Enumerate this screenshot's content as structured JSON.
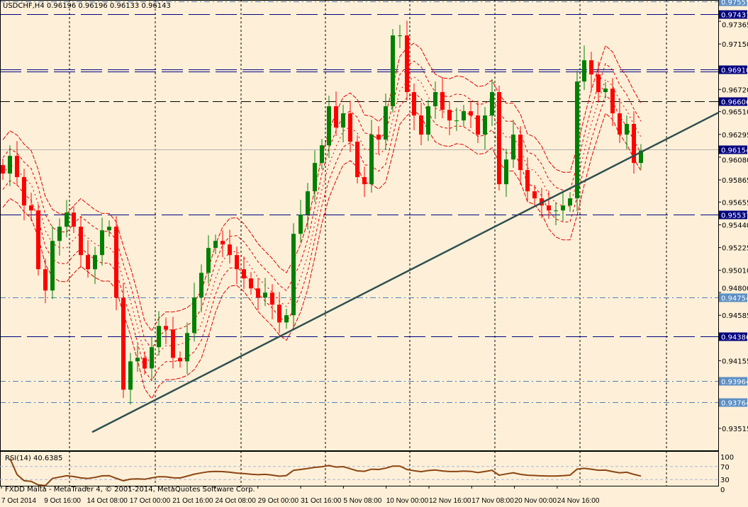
{
  "header": {
    "symbol_line": "USDCHF,H4  0.96196 0.96196 0.96133 0.96143"
  },
  "indicator": {
    "label": "RSI(14) 40.6385"
  },
  "footer": {
    "copyright": "FXDD Malta - MetaTrader 4, © 2001-2014, MetaQuotes Software Corp."
  },
  "colors": {
    "background": "#FEF0D8",
    "bull": "#008000",
    "bear": "#FF0000",
    "level_navy": "#000080",
    "level_steel": "#4F81BD",
    "envelope": "#E00000",
    "trendline": "#2F4F4F",
    "rsi": "#8B4513"
  },
  "chart_data": {
    "type": "candlestick",
    "symbol": "USDCHF",
    "timeframe": "H4",
    "closes": [
      0.95925,
      0.96092,
      0.95891,
      0.95623,
      0.95576,
      0.9502,
      0.94819,
      0.95288,
      0.95422,
      0.95556,
      0.95422,
      0.95154,
      0.9502,
      0.95154,
      0.95388,
      0.95422,
      0.94752,
      0.93881,
      0.94149,
      0.94182,
      0.94082,
      0.94283,
      0.94484,
      0.9445,
      0.94182,
      0.94149,
      0.94417,
      0.94752,
      0.94986,
      0.95221,
      0.95288,
      0.95254,
      0.95154,
      0.9502,
      0.94933,
      0.94839,
      0.94752,
      0.94799,
      0.94685,
      0.94517,
      0.94585,
      0.95355,
      0.95536,
      0.95757,
      0.96025,
      0.96192,
      0.96561,
      0.9636,
      0.96494,
      0.96226,
      0.95891,
      0.95824,
      0.96293,
      0.96246,
      0.96561,
      0.97231,
      0.97231,
      0.96695,
      0.96474,
      0.96293,
      0.96561,
      0.96695,
      0.96527,
      0.96427,
      0.96427,
      0.96514,
      0.96474,
      0.96293,
      0.96474,
      0.96695,
      0.95824,
      0.96058,
      0.96293,
      0.95958,
      0.95757,
      0.9569,
      0.95623,
      0.95576,
      0.95576,
      0.95623,
      0.9569,
      0.96795,
      0.96996,
      0.96862,
      0.96695,
      0.96728,
      0.96494,
      0.96293,
      0.96394,
      0.96025,
      0.96143
    ],
    "ylim": [
      0.9347,
      0.9775
    ],
    "y_ticks": [
      "0.97365",
      "0.97150",
      "0.96720",
      "0.96510",
      "0.96295",
      "0.96080",
      "0.95865",
      "0.95655",
      "0.95440",
      "0.95225",
      "0.95010",
      "0.94800",
      "0.94585",
      "0.94155",
      "0.93515"
    ],
    "x_ticks": [
      "7 Oct 2014",
      "9 Oct 16:00",
      "14 Oct 08:00",
      "17 Oct 00:00",
      "21 Oct 16:00",
      "24 Oct 08:00",
      "29 Oct 00:00",
      "31 Oct 16:00",
      "5 Nov 08:00",
      "10 Nov 00:00",
      "12 Nov 16:00",
      "17 Nov 08:00",
      "20 Nov 00:00",
      "24 Nov 16:00"
    ],
    "levels": [
      {
        "price": "0.97555",
        "style": "steel"
      },
      {
        "price": "0.97431",
        "style": "navy"
      },
      {
        "price": "0.96910",
        "style": "navy-double"
      },
      {
        "price": "0.96606",
        "style": "black"
      },
      {
        "price": "0.96154",
        "style": "grey"
      },
      {
        "price": "0.95537",
        "style": "navy"
      },
      {
        "price": "0.94754",
        "style": "steel"
      },
      {
        "price": "0.94386",
        "style": "navy"
      },
      {
        "price": "0.93964",
        "style": "steel"
      },
      {
        "price": "0.93764",
        "style": "steel"
      }
    ],
    "trendline": {
      "from_price": 0.9348,
      "to_price": 0.965
    },
    "rsi": {
      "period": 14,
      "value": 40.6385,
      "levels": [
        "100",
        "70",
        "30",
        "0"
      ]
    }
  }
}
